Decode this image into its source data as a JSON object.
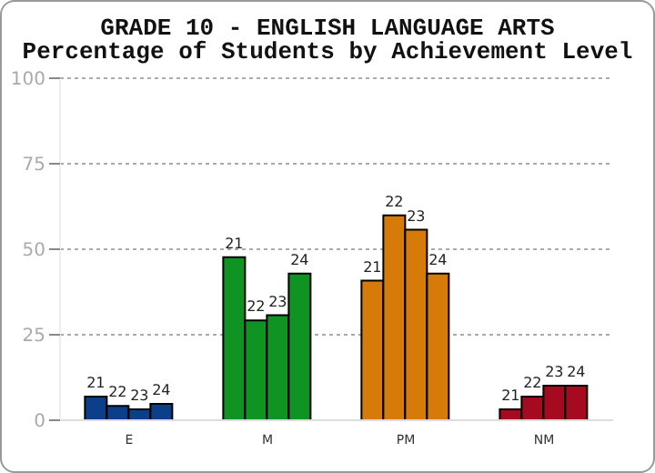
{
  "chart_data": {
    "type": "bar",
    "title": "GRADE 10 - ENGLISH LANGUAGE ARTS",
    "subtitle": "Percentage of Students by Achievement Level",
    "categories": [
      "E",
      "M",
      "PM",
      "NM"
    ],
    "series": [
      {
        "name": "21",
        "colors": [
          "#0b3f8a",
          "#0f9424",
          "#d67b09",
          "#a50a20"
        ],
        "values": [
          6.9,
          47.7,
          40.8,
          3.2
        ]
      },
      {
        "name": "22",
        "colors": [
          "#0b3f8a",
          "#0f9424",
          "#d67b09",
          "#a50a20"
        ],
        "values": [
          4.2,
          29.2,
          59.9,
          6.9
        ]
      },
      {
        "name": "23",
        "colors": [
          "#0b3f8a",
          "#0f9424",
          "#d67b09",
          "#a50a20"
        ],
        "values": [
          3.2,
          30.7,
          55.7,
          10.1
        ]
      },
      {
        "name": "24",
        "colors": [
          "#0b3f8a",
          "#0f9424",
          "#d67b09",
          "#a50a20"
        ],
        "values": [
          4.8,
          42.9,
          42.9,
          10.1
        ]
      }
    ],
    "ylim": [
      0,
      100
    ],
    "yticks": [
      0,
      25,
      50,
      75,
      100
    ],
    "grid": "y"
  }
}
